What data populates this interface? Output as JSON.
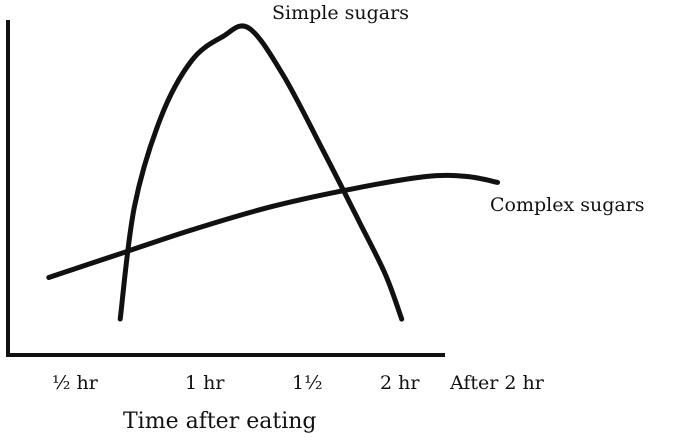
{
  "chart_data": {
    "type": "line",
    "xlabel": "Time after eating",
    "ylabel": "",
    "x_ticks": [
      {
        "label": "½ hr",
        "value": 0.5
      },
      {
        "label": "1 hr",
        "value": 1.0
      },
      {
        "label": "1½",
        "value": 1.5
      },
      {
        "label": "2 hr",
        "value": 2.0
      },
      {
        "label": "After 2 hr",
        "value": 2.5
      }
    ],
    "xlim": [
      0,
      2.7
    ],
    "ylim": [
      0,
      1
    ],
    "grid": false,
    "legend": "none",
    "series": [
      {
        "name": "Simple sugars",
        "points": [
          [
            0.55,
            0.02
          ],
          [
            0.62,
            0.4
          ],
          [
            0.75,
            0.7
          ],
          [
            0.9,
            0.89
          ],
          [
            1.05,
            0.97
          ],
          [
            1.18,
            1.0
          ],
          [
            1.35,
            0.84
          ],
          [
            1.55,
            0.58
          ],
          [
            1.72,
            0.35
          ],
          [
            1.85,
            0.17
          ],
          [
            1.93,
            0.02
          ]
        ]
      },
      {
        "name": "Complex sugars",
        "points": [
          [
            0.2,
            0.16
          ],
          [
            0.55,
            0.24
          ],
          [
            0.9,
            0.32
          ],
          [
            1.3,
            0.4
          ],
          [
            1.7,
            0.46
          ],
          [
            2.05,
            0.5
          ],
          [
            2.25,
            0.5
          ],
          [
            2.4,
            0.48
          ]
        ]
      }
    ]
  }
}
